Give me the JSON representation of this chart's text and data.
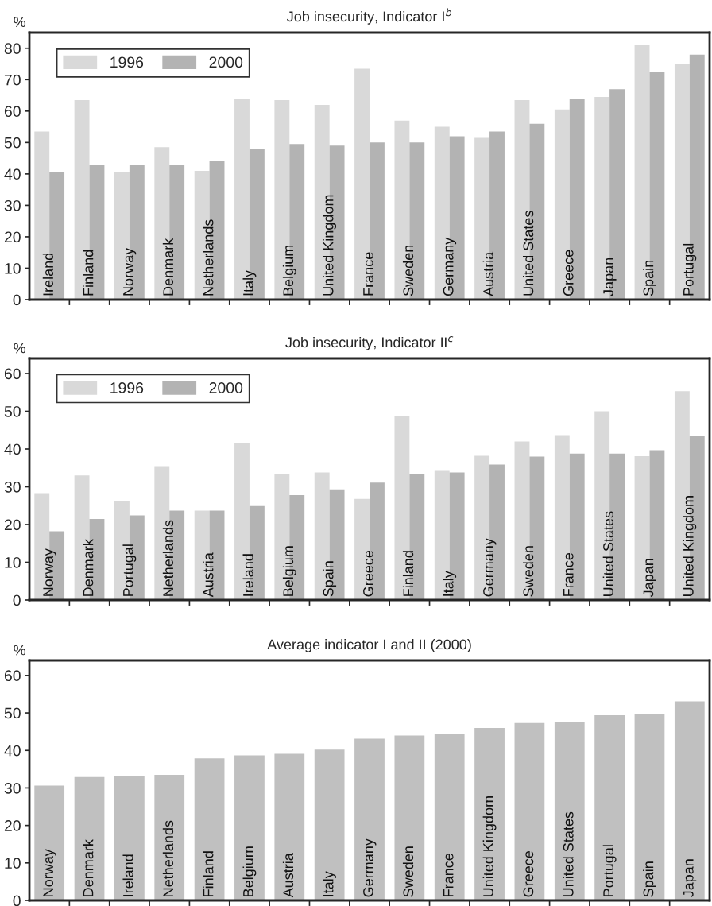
{
  "chart_data": [
    {
      "type": "bar",
      "title": "Job insecurity, Indicator I$^{b}$",
      "ylabel": "%",
      "categories": [
        "Ireland",
        "Finland",
        "Norway",
        "Denmark",
        "Netherlands",
        "Italy",
        "Belgium",
        "United Kingdom",
        "France",
        "Sweden",
        "Germany",
        "Austria",
        "United States",
        "Greece",
        "Japan",
        "Spain",
        "Portugal"
      ],
      "series": [
        {
          "name": "1996",
          "color": "#d9d9d9",
          "values": [
            53.5,
            63.5,
            40.5,
            48.5,
            41,
            64,
            63.5,
            62,
            73.5,
            57,
            55,
            51.5,
            63.5,
            60.5,
            64.5,
            81,
            75
          ]
        },
        {
          "name": "2000",
          "color": "#b3b3b3",
          "values": [
            40.5,
            43,
            43,
            43,
            44,
            48,
            49.5,
            49,
            50,
            50,
            52,
            53.5,
            56,
            64,
            67,
            72.5,
            78
          ]
        }
      ],
      "ylim": [
        0,
        85
      ],
      "yticks": [
        0,
        10,
        20,
        30,
        40,
        50,
        60,
        70,
        80
      ],
      "legend": "top left",
      "grid": false
    },
    {
      "type": "bar",
      "title": "Job insecurity, Indicator II$^{c}$",
      "ylabel": "%",
      "categories": [
        "Norway",
        "Denmark",
        "Portugal",
        "Netherlands",
        "Austria",
        "Ireland",
        "Belgium",
        "Spain",
        "Greece",
        "Finland",
        "Italy",
        "Germany",
        "Sweden",
        "France",
        "United States",
        "Japan",
        "United Kingdom"
      ],
      "series": [
        {
          "name": "1996",
          "color": "#d9d9d9",
          "values": [
            28.3,
            33,
            26.2,
            35.5,
            23.7,
            41.5,
            33.3,
            33.8,
            26.8,
            48.7,
            34.2,
            38.2,
            42,
            43.7,
            50,
            38.1,
            55.3
          ]
        },
        {
          "name": "2000",
          "color": "#b3b3b3",
          "values": [
            18.2,
            21.5,
            22.4,
            23.7,
            23.7,
            24.9,
            27.8,
            29.3,
            31.1,
            33.3,
            33.8,
            35.9,
            38,
            38.8,
            38.8,
            39.7,
            43.5
          ]
        }
      ],
      "ylim": [
        0,
        64
      ],
      "yticks": [
        0,
        10,
        20,
        30,
        40,
        50,
        60
      ],
      "legend": "top left",
      "grid": false
    },
    {
      "type": "bar",
      "title": "Average indicator I and II (2000)",
      "ylabel": "%",
      "categories": [
        "Norway",
        "Denmark",
        "Ireland",
        "Netherlands",
        "Finland",
        "Belgium",
        "Austria",
        "Italy",
        "Germany",
        "Sweden",
        "France",
        "United Kingdom",
        "Greece",
        "United States",
        "Portugal",
        "Spain",
        "Japan"
      ],
      "series": [
        {
          "color": "#c0c0c0",
          "values": [
            30.6,
            32.9,
            33.2,
            33.5,
            37.9,
            38.7,
            39.1,
            40.2,
            43.1,
            44,
            44.3,
            46,
            47.3,
            47.5,
            49.4,
            49.7,
            53.1
          ]
        }
      ],
      "ylim": [
        0,
        64
      ],
      "yticks": [
        0,
        10,
        20,
        30,
        40,
        50,
        60
      ],
      "grid": false
    }
  ]
}
